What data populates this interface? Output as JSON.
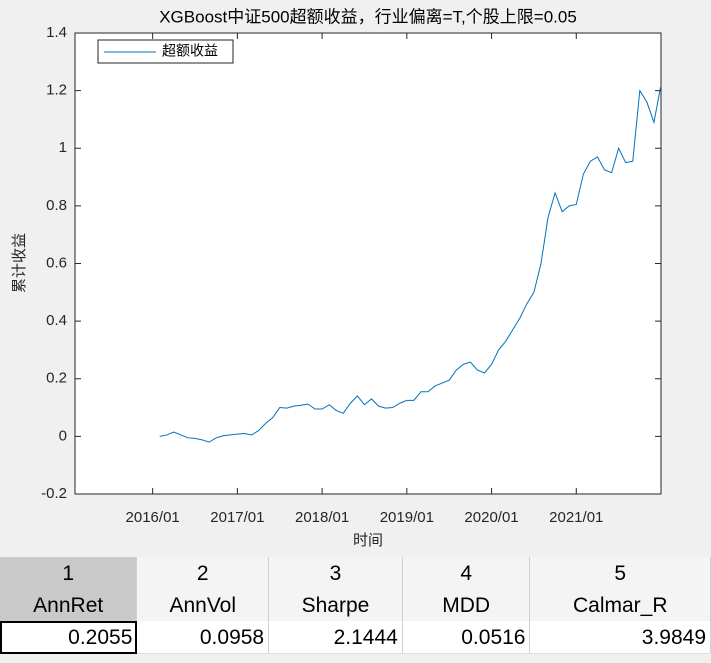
{
  "chart_data": {
    "type": "line",
    "title": "XGBoost中证500超额收益，行业偏离=T,个股上限=0.05",
    "xlabel": "时间",
    "ylabel": "累计收益",
    "x": [
      "2016/02",
      "2016/03",
      "2016/04",
      "2016/05",
      "2016/06",
      "2016/07",
      "2016/08",
      "2016/09",
      "2016/10",
      "2016/11",
      "2016/12",
      "2017/01",
      "2017/02",
      "2017/03",
      "2017/04",
      "2017/05",
      "2017/06",
      "2017/07",
      "2017/08",
      "2017/09",
      "2017/10",
      "2017/11",
      "2017/12",
      "2018/01",
      "2018/02",
      "2018/03",
      "2018/04",
      "2018/05",
      "2018/06",
      "2018/07",
      "2018/08",
      "2018/09",
      "2018/10",
      "2018/11",
      "2018/12",
      "2019/01",
      "2019/02",
      "2019/03",
      "2019/04",
      "2019/05",
      "2019/06",
      "2019/07",
      "2019/08",
      "2019/09",
      "2019/10",
      "2019/11",
      "2019/12",
      "2020/01",
      "2020/02",
      "2020/03",
      "2020/04",
      "2020/05",
      "2020/06",
      "2020/07",
      "2020/08",
      "2020/09",
      "2020/10",
      "2020/11",
      "2020/12",
      "2021/01",
      "2021/02",
      "2021/03",
      "2021/04",
      "2021/05",
      "2021/06",
      "2021/07",
      "2021/08",
      "2021/09",
      "2021/10",
      "2021/11",
      "2021/12",
      "2022/01"
    ],
    "series": [
      {
        "name": "超额收益",
        "color": "#0072bd",
        "values": [
          0.0,
          0.005,
          0.015,
          0.005,
          -0.005,
          -0.007,
          -0.012,
          -0.02,
          -0.005,
          0.002,
          0.005,
          0.008,
          0.01,
          0.005,
          0.02,
          0.045,
          0.065,
          0.1,
          0.098,
          0.105,
          0.108,
          0.112,
          0.095,
          0.095,
          0.11,
          0.09,
          0.08,
          0.115,
          0.14,
          0.11,
          0.13,
          0.105,
          0.098,
          0.1,
          0.115,
          0.125,
          0.125,
          0.155,
          0.155,
          0.175,
          0.185,
          0.195,
          0.23,
          0.25,
          0.258,
          0.23,
          0.22,
          0.25,
          0.3,
          0.33,
          0.37,
          0.41,
          0.46,
          0.5,
          0.6,
          0.76,
          0.845,
          0.78,
          0.8,
          0.805,
          0.91,
          0.955,
          0.97,
          0.925,
          0.915,
          1.0,
          0.95,
          0.955,
          1.2,
          1.16,
          1.09,
          1.22
        ]
      }
    ],
    "xlim": [
      "2015/02",
      "2022/01"
    ],
    "xticks": [
      "2016/01",
      "2017/01",
      "2018/01",
      "2019/01",
      "2020/01",
      "2021/01"
    ],
    "ylim": [
      -0.2,
      1.4
    ],
    "yticks": [
      -0.2,
      0,
      0.2,
      0.4,
      0.6,
      0.8,
      1,
      1.2,
      1.4
    ],
    "grid": false,
    "legend": "northwest"
  },
  "table": {
    "columns": [
      1,
      2,
      3,
      4,
      5
    ],
    "headers": [
      "AnnRet",
      "AnnVol",
      "Sharpe",
      "MDD",
      "Calmar_R"
    ],
    "rows": [
      [
        0.2055,
        0.0958,
        2.1444,
        0.0516,
        3.9849
      ]
    ]
  }
}
